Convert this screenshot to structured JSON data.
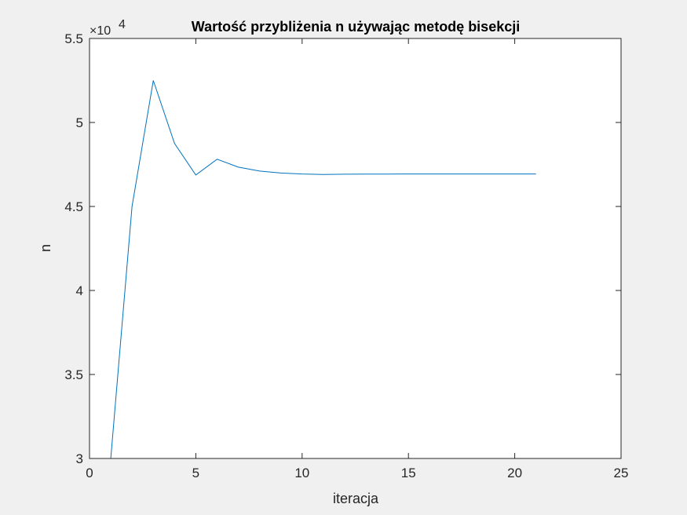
{
  "chart_data": {
    "type": "line",
    "title": "Wartość przybliżenia n używając metodę bisekcji",
    "xlabel": "iteracja",
    "ylabel": "n",
    "xlim": [
      0,
      25
    ],
    "ylim": [
      3.0,
      5.5
    ],
    "y_multiplier": "×10",
    "y_exponent": "4",
    "x_ticks": [
      0,
      5,
      10,
      15,
      20,
      25
    ],
    "x_tick_labels": [
      "0",
      "5",
      "10",
      "15",
      "20",
      "25"
    ],
    "y_ticks": [
      3.0,
      3.5,
      4.0,
      4.5,
      5.0,
      5.5
    ],
    "y_tick_labels": [
      "3",
      "3.5",
      "4",
      "4.5",
      "5",
      "5.5"
    ],
    "grid": false,
    "series": [
      {
        "color": "#0072bd",
        "x": [
          1,
          2,
          3,
          4,
          5,
          6,
          7,
          8,
          9,
          10,
          11,
          12,
          13,
          14,
          15,
          16,
          17,
          18,
          19,
          20,
          21
        ],
        "y": [
          3.0,
          4.5,
          5.25,
          4.875,
          4.6875,
          4.78125,
          4.734375,
          4.7109375,
          4.69921875,
          4.693359,
          4.69043,
          4.691895,
          4.692627,
          4.692993,
          4.693176,
          4.693085,
          4.69313,
          4.693153,
          4.693142,
          4.693148,
          4.693151
        ]
      }
    ]
  }
}
